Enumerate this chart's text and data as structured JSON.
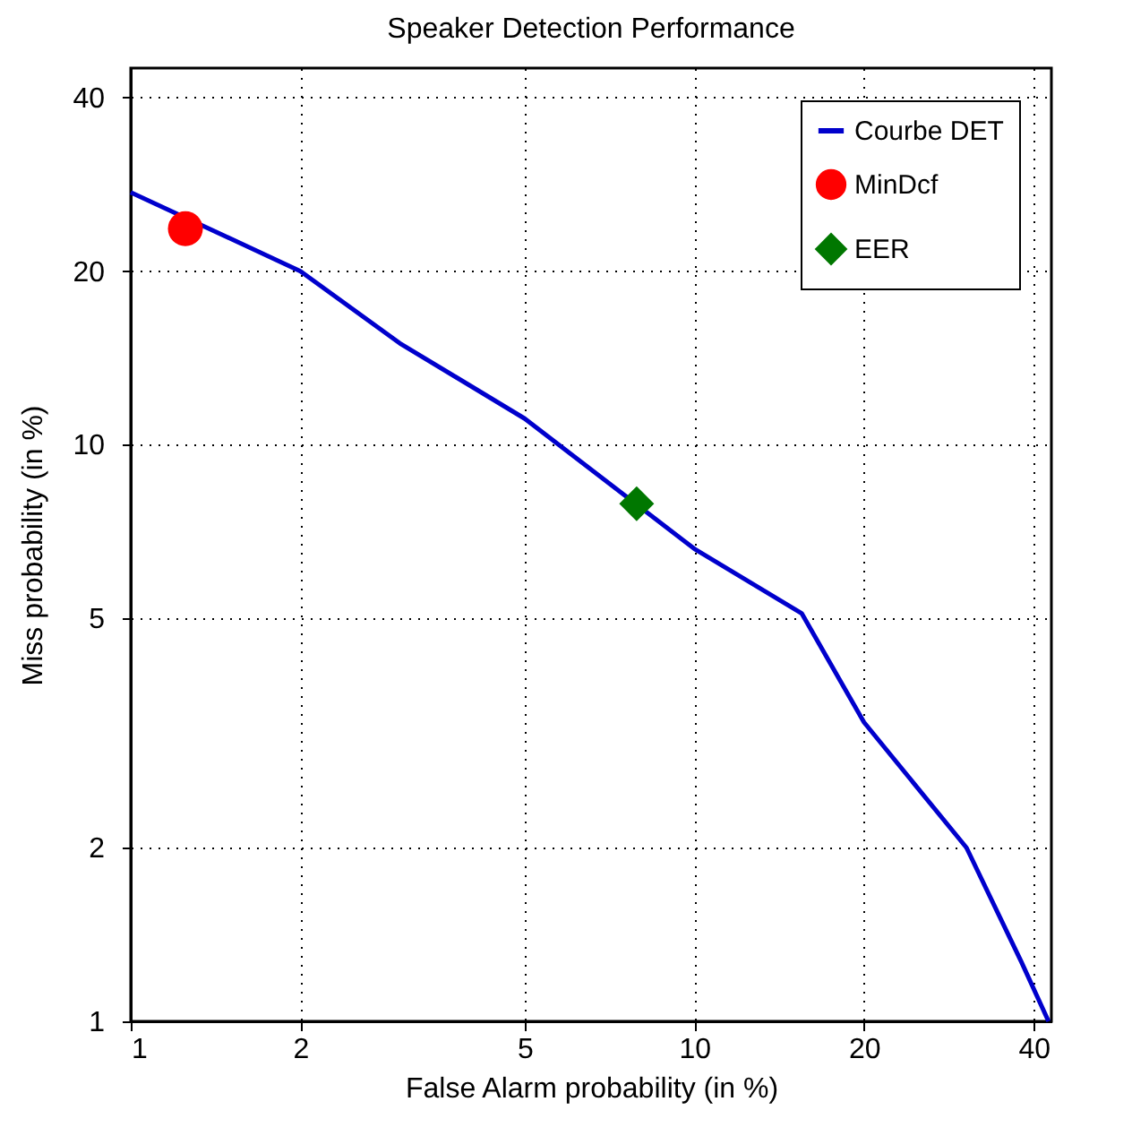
{
  "chart_data": {
    "type": "line",
    "title": "Speaker Detection Performance",
    "xlabel": "False Alarm probability (in %)",
    "ylabel": "Miss probability (in %)",
    "log": "xy",
    "xlim": [
      1,
      43
    ],
    "ylim": [
      1,
      45
    ],
    "xticks": [
      1,
      2,
      5,
      10,
      20,
      40
    ],
    "yticks": [
      1,
      2,
      5,
      10,
      20,
      40
    ],
    "grid": true,
    "legend": "top right",
    "series": [
      {
        "name": "Courbe DET",
        "color": "#0000cc",
        "marker": "none",
        "line_style": "solid",
        "x": [
          1,
          2,
          3,
          5,
          10,
          15.5,
          20,
          30.4,
          38,
          42.5
        ],
        "values": [
          27.4,
          20,
          15,
          11.1,
          6.6,
          5.1,
          3.3,
          2.0,
          1.27,
          1.0
        ]
      },
      {
        "name": "MinDcf",
        "type": "scatter",
        "color": "#ff0000",
        "marker": "circle",
        "x": [
          1.25
        ],
        "values": [
          23.7
        ]
      },
      {
        "name": "EER",
        "type": "scatter",
        "color": "#007700",
        "marker": "diamond",
        "x": [
          7.9
        ],
        "values": [
          7.9
        ]
      }
    ]
  }
}
